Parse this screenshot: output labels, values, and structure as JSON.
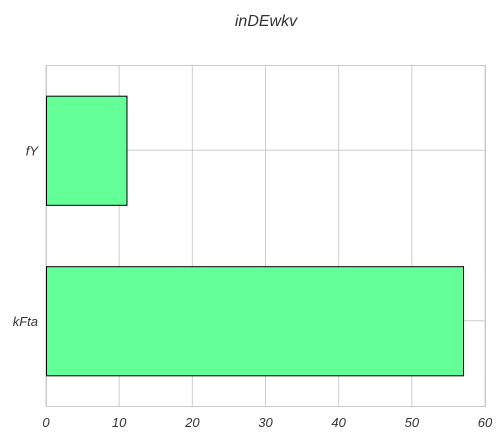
{
  "chart_data": {
    "type": "bar",
    "orientation": "horizontal",
    "title": "inDEwkv",
    "xlabel": "",
    "ylabel": "",
    "categories": [
      "fY",
      "kFta"
    ],
    "values": [
      11,
      57
    ],
    "xlim": [
      0,
      60
    ],
    "xticks": [
      0,
      10,
      20,
      30,
      40,
      50,
      60
    ],
    "grid": true,
    "bar_color": "#64ff96",
    "bar_edge_color": "#000000"
  }
}
